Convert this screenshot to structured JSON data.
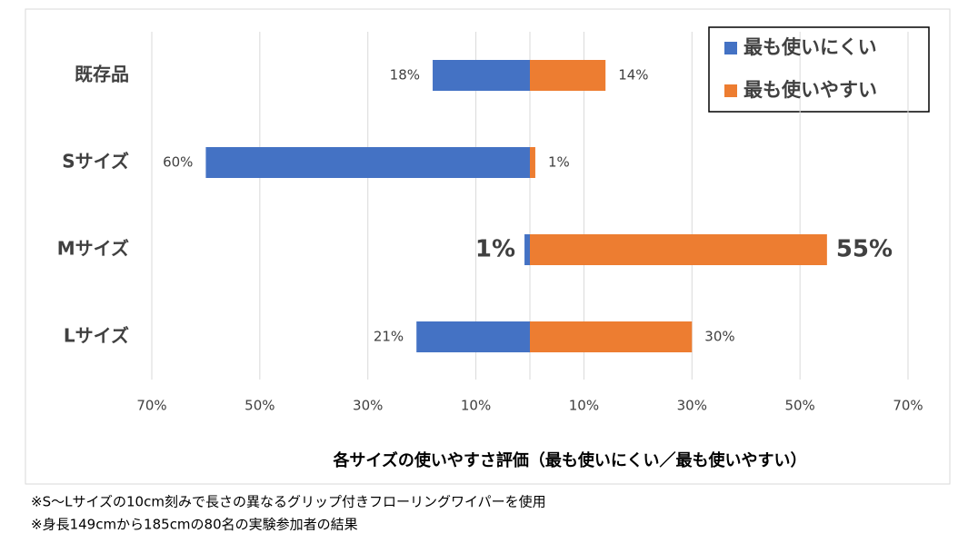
{
  "chart_data": {
    "type": "diverging-bar",
    "x_axis_label": "各サイズの使いやすさ評価（最も使いにくい／最も使いやすい）",
    "categories": [
      "既存品",
      "Sサイズ",
      "Mサイズ",
      "Lサイズ"
    ],
    "series": [
      {
        "name": "最も使いにくい",
        "color": "#4472c4",
        "side": "left",
        "values": [
          18,
          60,
          1,
          21
        ],
        "value_labels": [
          "18%",
          "60%",
          "1%",
          "21%"
        ]
      },
      {
        "name": "最も使いやすい",
        "color": "#ed7d31",
        "side": "right",
        "values": [
          14,
          1,
          55,
          30
        ],
        "value_labels": [
          "14%",
          "1%",
          "55%",
          "30%"
        ]
      }
    ],
    "emphasis_category": 2,
    "xlim": [
      -70,
      70
    ],
    "xticks": [
      {
        "value": -70,
        "label": "70%"
      },
      {
        "value": -50,
        "label": "50%"
      },
      {
        "value": -30,
        "label": "30%"
      },
      {
        "value": -10,
        "label": "10%"
      },
      {
        "value": 10,
        "label": "10%"
      },
      {
        "value": 30,
        "label": "30%"
      },
      {
        "value": 50,
        "label": "50%"
      },
      {
        "value": 70,
        "label": "70%"
      }
    ],
    "grid": true,
    "legend_position": "top-right"
  },
  "notes": [
    "※S～Lサイズの10cm刻みで長さの異なるグリップ付きフローリングワイパーを使用",
    "※身長149cmから185cmの80名の実験参加者の結果"
  ]
}
